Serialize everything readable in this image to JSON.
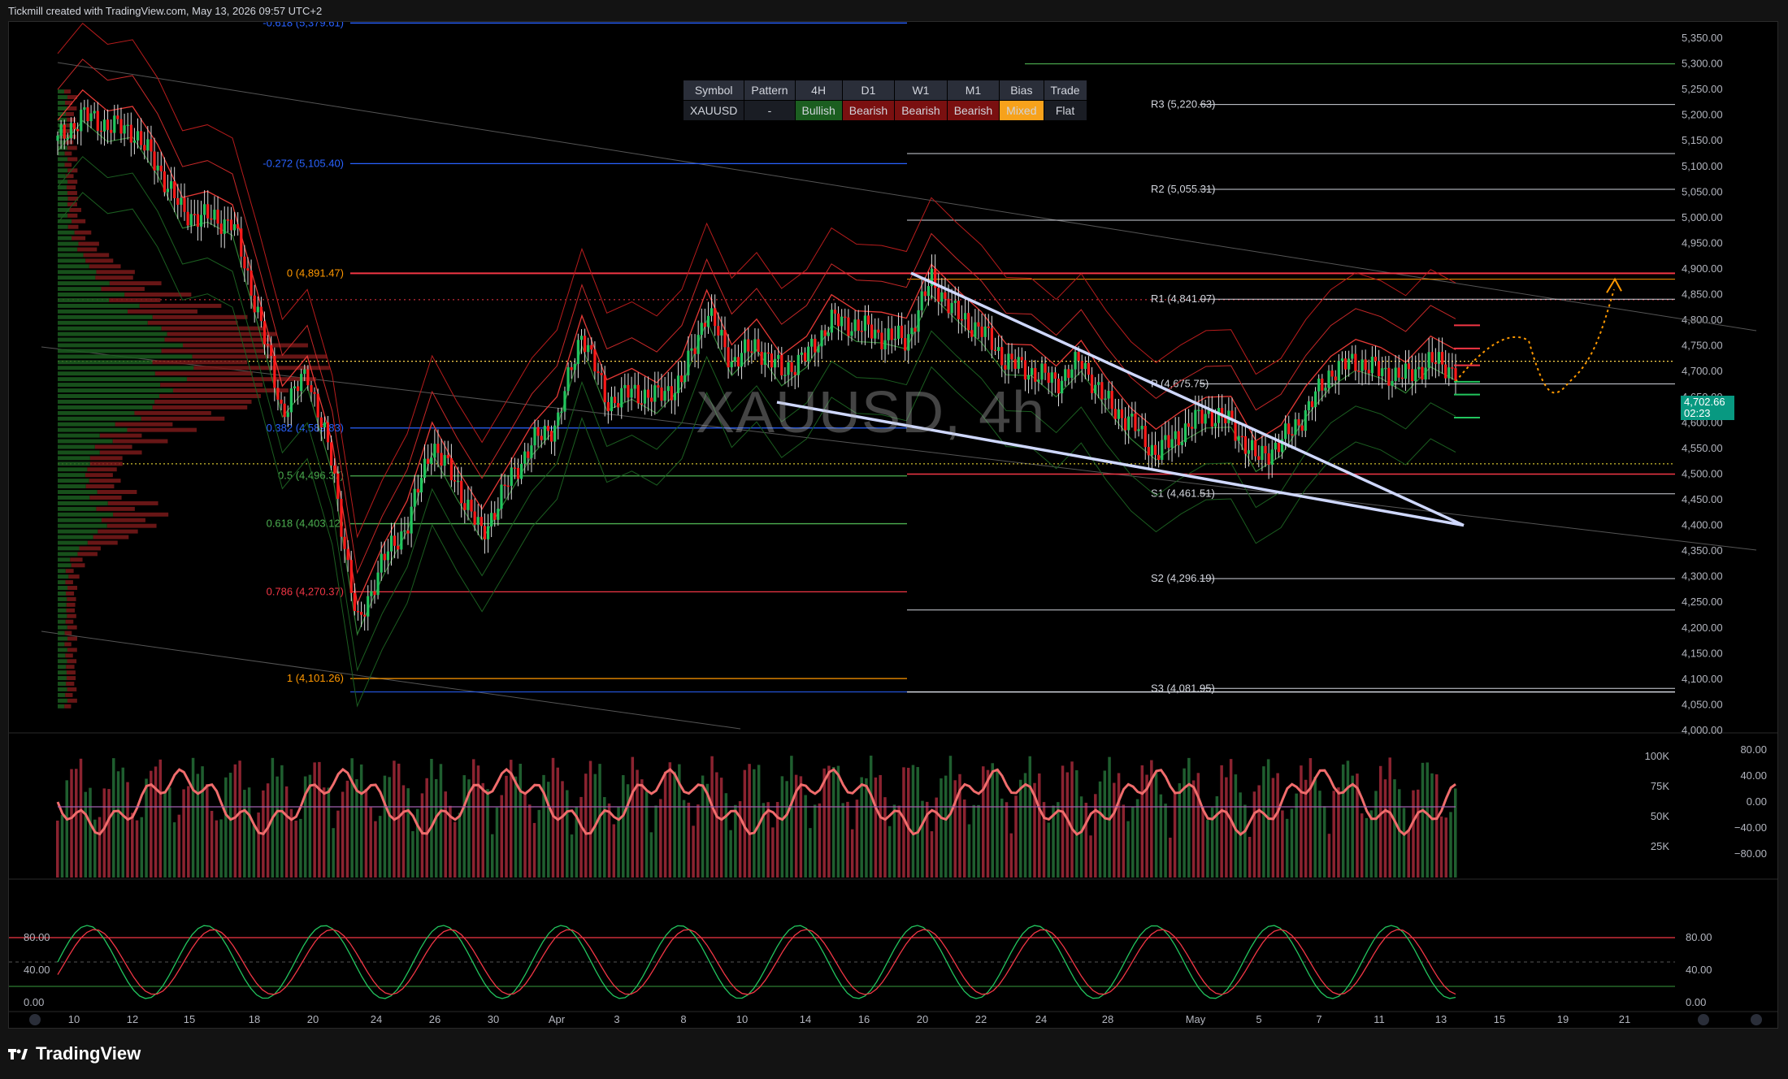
{
  "header": {
    "text": "Tickmill created with TradingView.com, May 13, 2026 09:57 UTC+2"
  },
  "footer": {
    "logo_text": "TradingView"
  },
  "watermark": "XAUUSD, 4h",
  "table": {
    "headers": [
      "Symbol",
      "Pattern",
      "4H",
      "D1",
      "W1",
      "M1",
      "Bias",
      "Trade"
    ],
    "row": [
      {
        "text": "XAUUSD",
        "color": "#1a1d24"
      },
      {
        "text": "-",
        "color": "#1a1d24"
      },
      {
        "text": "Bullish",
        "color": "#1b5e20"
      },
      {
        "text": "Bearish",
        "color": "#7a1010"
      },
      {
        "text": "Bearish",
        "color": "#7a1010"
      },
      {
        "text": "Bearish",
        "color": "#7a1010"
      },
      {
        "text": "Mixed",
        "color": "#f7a21b"
      },
      {
        "text": "Flat",
        "color": "#1a1d24"
      }
    ]
  },
  "price_badge": {
    "price": "4,702.66",
    "countdown": "02:23"
  },
  "chart_data": {
    "type": "candlestick",
    "symbol": "XAUUSD",
    "timeframe": "4h",
    "y_axis": {
      "ticks": [
        "5,350.00",
        "5,300.00",
        "5,250.00",
        "5,200.00",
        "5,150.00",
        "5,100.00",
        "5,050.00",
        "5,000.00",
        "4,950.00",
        "4,900.00",
        "4,850.00",
        "4,800.00",
        "4,750.00",
        "4,700.00",
        "4,650.00",
        "4,600.00",
        "4,550.00",
        "4,500.00",
        "4,450.00",
        "4,400.00",
        "4,350.00",
        "4,300.00",
        "4,250.00",
        "4,200.00",
        "4,150.00",
        "4,100.00",
        "4,050.00",
        "4,000.00"
      ],
      "range": [
        4000,
        5350
      ]
    },
    "x_axis": {
      "ticks": [
        "10",
        "12",
        "15",
        "18",
        "20",
        "24",
        "26",
        "30",
        "Apr",
        "3",
        "8",
        "10",
        "14",
        "16",
        "20",
        "22",
        "24",
        "28",
        "May",
        "5",
        "7",
        "11",
        "13",
        "15",
        "19",
        "21"
      ]
    },
    "close_path": [
      {
        "d": "Mar 9",
        "c": 5150
      },
      {
        "d": "Mar 10",
        "c": 5200
      },
      {
        "d": "Mar 11",
        "c": 5180
      },
      {
        "d": "Mar 12",
        "c": 5170
      },
      {
        "d": "Mar 13",
        "c": 5100
      },
      {
        "d": "Mar 16",
        "c": 5010
      },
      {
        "d": "Mar 17",
        "c": 5000
      },
      {
        "d": "Mar 18",
        "c": 4990
      },
      {
        "d": "Mar 19",
        "c": 4820
      },
      {
        "d": "Mar 20",
        "c": 4620
      },
      {
        "d": "Mar 21",
        "c": 4700
      },
      {
        "d": "Mar 22",
        "c": 4520
      },
      {
        "d": "Mar 23",
        "c": 4200
      },
      {
        "d": "Mar 24",
        "c": 4330
      },
      {
        "d": "Mar 25",
        "c": 4400
      },
      {
        "d": "Mar 26",
        "c": 4560
      },
      {
        "d": "Mar 27",
        "c": 4480
      },
      {
        "d": "Mar 28",
        "c": 4380
      },
      {
        "d": "Mar 30",
        "c": 4480
      },
      {
        "d": "Mar 31",
        "c": 4560
      },
      {
        "d": "Apr 1",
        "c": 4600
      },
      {
        "d": "Apr 2",
        "c": 4780
      },
      {
        "d": "Apr 3",
        "c": 4640
      },
      {
        "d": "Apr 5",
        "c": 4660
      },
      {
        "d": "Apr 6",
        "c": 4650
      },
      {
        "d": "Apr 7",
        "c": 4680
      },
      {
        "d": "Apr 8",
        "c": 4820
      },
      {
        "d": "Apr 9",
        "c": 4720
      },
      {
        "d": "Apr 10",
        "c": 4750
      },
      {
        "d": "Apr 12",
        "c": 4700
      },
      {
        "d": "Apr 13",
        "c": 4730
      },
      {
        "d": "Apr 14",
        "c": 4800
      },
      {
        "d": "Apr 15",
        "c": 4790
      },
      {
        "d": "Apr 16",
        "c": 4770
      },
      {
        "d": "Apr 17",
        "c": 4760
      },
      {
        "d": "Apr 19",
        "c": 4880
      },
      {
        "d": "Apr 20",
        "c": 4810
      },
      {
        "d": "Apr 21",
        "c": 4780
      },
      {
        "d": "Apr 22",
        "c": 4720
      },
      {
        "d": "Apr 23",
        "c": 4700
      },
      {
        "d": "Apr 24",
        "c": 4680
      },
      {
        "d": "Apr 26",
        "c": 4720
      },
      {
        "d": "Apr 27",
        "c": 4640
      },
      {
        "d": "Apr 28",
        "c": 4600
      },
      {
        "d": "Apr 29",
        "c": 4540
      },
      {
        "d": "Apr 30",
        "c": 4580
      },
      {
        "d": "May 1",
        "c": 4620
      },
      {
        "d": "May 3",
        "c": 4600
      },
      {
        "d": "May 4",
        "c": 4530
      },
      {
        "d": "May 5",
        "c": 4560
      },
      {
        "d": "May 6",
        "c": 4620
      },
      {
        "d": "May 7",
        "c": 4700
      },
      {
        "d": "May 8",
        "c": 4720
      },
      {
        "d": "May 10",
        "c": 4700
      },
      {
        "d": "May 11",
        "c": 4690
      },
      {
        "d": "May 12",
        "c": 4720
      },
      {
        "d": "May 13",
        "c": 4702.66
      }
    ],
    "levels": [
      {
        "label": "R3 (5,220.63)",
        "price": 5220.63,
        "color": "#d1d4dc"
      },
      {
        "label": "R2 (5,055.31)",
        "price": 5055.31,
        "color": "#d1d4dc"
      },
      {
        "label": "R1 (4,841.07)",
        "price": 4841.07,
        "color": "#d1d4dc"
      },
      {
        "label": "P (4,675.75)",
        "price": 4675.75,
        "color": "#d1d4dc"
      },
      {
        "label": "S1 (4,461.51)",
        "price": 4461.51,
        "color": "#d1d4dc"
      },
      {
        "label": "S2 (4,296.19)",
        "price": 4296.19,
        "color": "#d1d4dc"
      },
      {
        "label": "S3 (4,081.95)",
        "price": 4081.95,
        "color": "#d1d4dc"
      }
    ],
    "fib_levels": [
      {
        "label": "-0.618 (5,379.61)",
        "price": 5379.61,
        "color": "#2962ff"
      },
      {
        "label": "-0.272 (5,105.40)",
        "price": 5105.4,
        "color": "#2962ff"
      },
      {
        "label": "0 (4,891.47)",
        "price": 4891.47,
        "color": "#ff9800"
      },
      {
        "label": "0.382 (4,589.83)",
        "price": 4589.83,
        "color": "#2962ff"
      },
      {
        "label": "0.5 (4,496.37)",
        "price": 4496.37,
        "color": "#4caf50"
      },
      {
        "label": "0.618 (4,403.12)",
        "price": 4403.12,
        "color": "#4caf50"
      },
      {
        "label": "0.786 (4,270.37)",
        "price": 4270.37,
        "color": "#f23645"
      },
      {
        "label": "1 (4,101.26)",
        "price": 4101.26,
        "color": "#ff9800"
      }
    ],
    "volume_axis": [
      "100K",
      "75K",
      "50K",
      "25K"
    ],
    "momentum_axis": [
      "80.00",
      "40.00",
      "0.00",
      "−40.00",
      "−80.00"
    ],
    "stoch_axis": [
      "80.00",
      "40.00",
      "0.00"
    ],
    "colors": {
      "up": "#089981",
      "down": "#f23645",
      "bg": "#000000"
    }
  }
}
